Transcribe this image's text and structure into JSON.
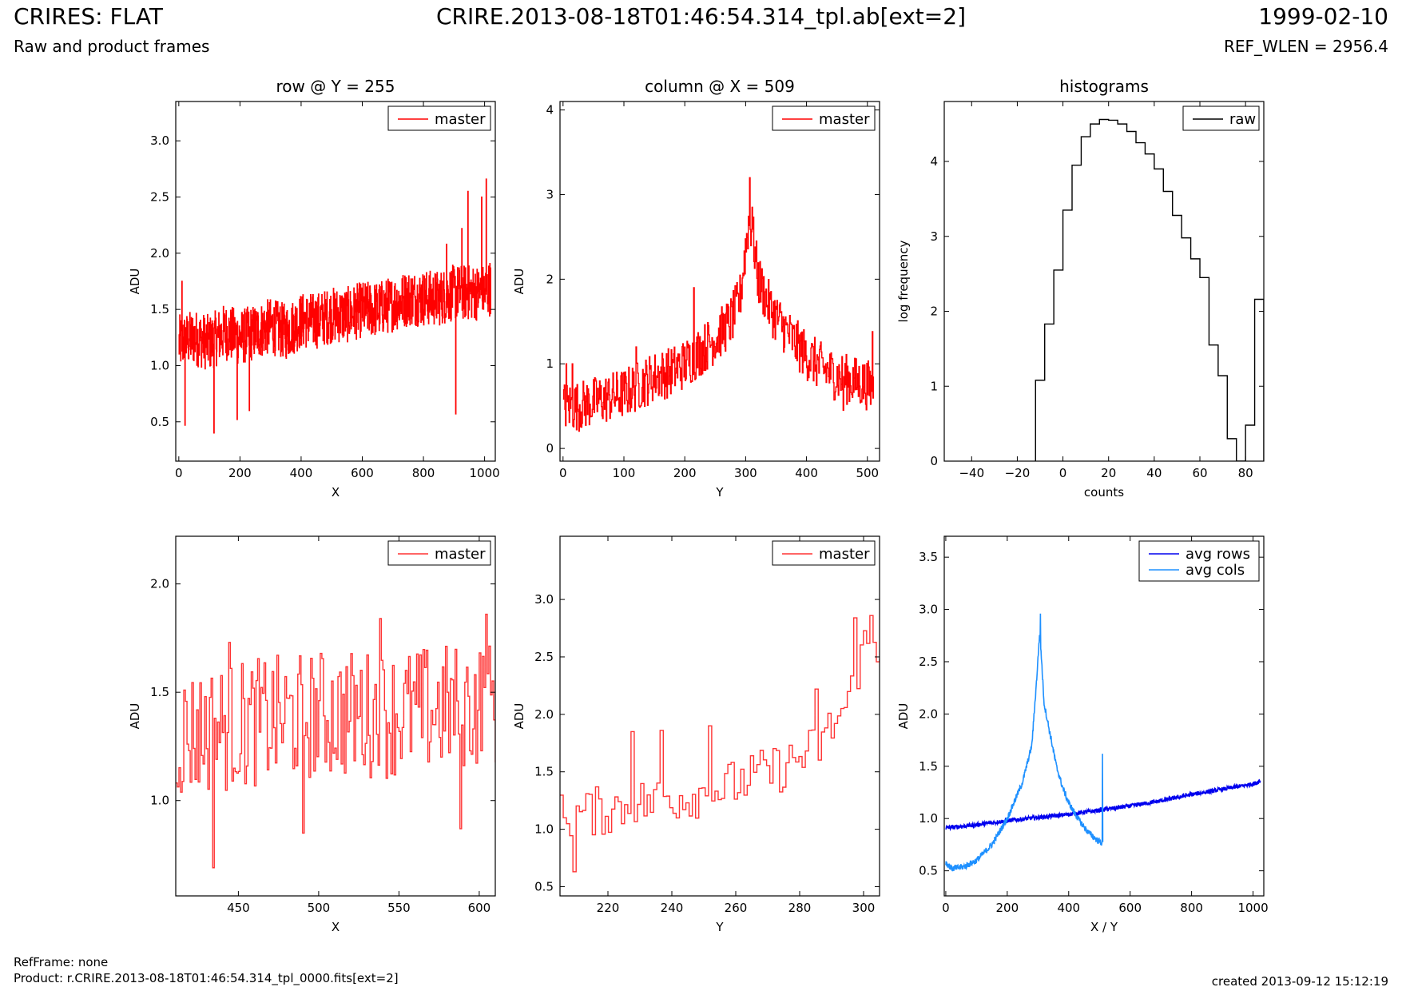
{
  "header": {
    "title": "CRIRES: FLAT",
    "subtitle": "Raw and product frames",
    "file": "CRIRE.2013-08-18T01:46:54.314_tpl.ab[ext=2]",
    "date": "1999-02-10",
    "ref_wlen": "REF_WLEN = 2956.4"
  },
  "footer": {
    "refframe": "RefFrame: none",
    "product": "Product: r.CRIRE.2013-08-18T01:46:54.314_tpl_0000.fits[ext=2]",
    "created": "created 2013-09-12 15:12:19"
  },
  "colors": {
    "master": "#ff0000",
    "zoom": "#ff3333",
    "raw": "#000000",
    "avg_rows": "#0000ee",
    "avg_cols": "#1e90ff"
  },
  "chart_data": [
    {
      "id": "row",
      "type": "line",
      "title": "row @ Y = 255",
      "xlabel": "X",
      "ylabel": "ADU",
      "xlim": [
        -10,
        1035
      ],
      "ylim": [
        0.15,
        3.35
      ],
      "xticks": [
        0,
        200,
        400,
        600,
        800,
        1000
      ],
      "yticks": [
        0.5,
        1.0,
        1.5,
        2.0,
        2.5,
        3.0
      ],
      "ytick_format": 1,
      "legend": "top-right",
      "series": [
        {
          "name": "master",
          "color": "#ff0000",
          "style": "step",
          "x": [
            0,
            50,
            100,
            150,
            200,
            250,
            300,
            350,
            400,
            450,
            500,
            550,
            600,
            650,
            700,
            750,
            800,
            850,
            900,
            950,
            1000,
            1020
          ],
          "y": [
            1.2,
            1.25,
            1.2,
            1.3,
            1.25,
            1.3,
            1.35,
            1.3,
            1.4,
            1.4,
            1.45,
            1.45,
            1.5,
            1.5,
            1.55,
            1.6,
            1.6,
            1.6,
            1.65,
            1.65,
            1.65,
            1.7
          ],
          "noise": 0.25,
          "samples": 1024,
          "spikes": [
            [
              10,
              1.75
            ],
            [
              20,
              0.47
            ],
            [
              115,
              0.4
            ],
            [
              190,
              0.52
            ],
            [
              230,
              0.6
            ],
            [
              905,
              0.57
            ],
            [
              945,
              2.55
            ],
            [
              990,
              2.5
            ],
            [
              1005,
              2.66
            ],
            [
              875,
              2.08
            ],
            [
              925,
              2.22
            ]
          ]
        }
      ]
    },
    {
      "id": "column",
      "type": "line",
      "title": "column @ X = 509",
      "xlabel": "Y",
      "ylabel": "ADU",
      "xlim": [
        -5,
        520
      ],
      "ylim": [
        -0.15,
        4.1
      ],
      "xticks": [
        0,
        100,
        200,
        300,
        400,
        500
      ],
      "yticks": [
        0,
        1,
        2,
        3,
        4
      ],
      "ytick_format": 0,
      "legend": "top-right",
      "series": [
        {
          "name": "master",
          "color": "#ff0000",
          "style": "step",
          "x": [
            0,
            25,
            50,
            75,
            100,
            125,
            150,
            175,
            200,
            225,
            250,
            275,
            290,
            300,
            305,
            310,
            320,
            340,
            360,
            380,
            400,
            425,
            450,
            475,
            500,
            510
          ],
          "y": [
            0.5,
            0.5,
            0.55,
            0.6,
            0.65,
            0.75,
            0.85,
            0.9,
            1.0,
            1.15,
            1.3,
            1.5,
            1.75,
            2.4,
            2.7,
            2.6,
            2.0,
            1.65,
            1.45,
            1.25,
            1.1,
            0.95,
            0.85,
            0.8,
            0.75,
            0.7
          ],
          "noise": 0.3,
          "samples": 512,
          "spikes": [
            [
              306,
              3.2
            ],
            [
              310,
              2.85
            ],
            [
              5,
              1.0
            ],
            [
              15,
              1.0
            ],
            [
              120,
              1.2
            ],
            [
              460,
              0.45
            ],
            [
              508,
              0.33
            ],
            [
              508,
              1.38
            ],
            [
              215,
              1.9
            ]
          ]
        }
      ]
    },
    {
      "id": "hist",
      "type": "line",
      "title": "histograms",
      "xlabel": "counts",
      "ylabel": "log frequency",
      "xlim": [
        -52,
        88
      ],
      "ylim": [
        0,
        4.8
      ],
      "xticks": [
        -40,
        -20,
        0,
        20,
        40,
        60,
        80
      ],
      "yticks": [
        0,
        1,
        2,
        3,
        4
      ],
      "ytick_format": 0,
      "legend": "top-right",
      "series": [
        {
          "name": "raw",
          "color": "#000000",
          "style": "hist",
          "edges": [
            -12,
            -8,
            -4,
            0,
            4,
            8,
            12,
            16,
            20,
            24,
            28,
            32,
            36,
            40,
            44,
            48,
            52,
            56,
            60,
            64,
            68,
            72,
            76,
            80,
            84,
            88
          ],
          "values": [
            1.08,
            1.83,
            2.55,
            3.35,
            3.95,
            4.33,
            4.5,
            4.56,
            4.55,
            4.5,
            4.4,
            4.25,
            4.1,
            3.9,
            3.6,
            3.28,
            2.98,
            2.7,
            2.45,
            1.55,
            1.14,
            0.3,
            0,
            0.48,
            2.16
          ]
        }
      ]
    },
    {
      "id": "row-zoom",
      "type": "line",
      "title": "",
      "xlabel": "X",
      "ylabel": "ADU",
      "xlim": [
        411,
        610
      ],
      "ylim": [
        0.56,
        2.22
      ],
      "xticks": [
        450,
        500,
        550,
        600
      ],
      "yticks": [
        1.0,
        1.5,
        2.0
      ],
      "ytick_format": 1,
      "legend": "top-right",
      "series": [
        {
          "name": "master",
          "color": "#ff3333",
          "style": "step",
          "x": [
            411,
            450,
            500,
            550,
            600,
            610
          ],
          "y": [
            1.3,
            1.35,
            1.4,
            1.4,
            1.45,
            1.45
          ],
          "noise": 0.3,
          "samples": 200,
          "spikes": [
            [
              434,
              0.69
            ],
            [
              444,
              1.73
            ],
            [
              490,
              0.85
            ],
            [
              538,
              1.84
            ],
            [
              588,
              0.87
            ],
            [
              604,
              1.86
            ]
          ]
        }
      ]
    },
    {
      "id": "column-zoom",
      "type": "line",
      "title": "",
      "xlabel": "Y",
      "ylabel": "ADU",
      "xlim": [
        205,
        305
      ],
      "ylim": [
        0.42,
        3.55
      ],
      "xticks": [
        220,
        240,
        260,
        280,
        300
      ],
      "yticks": [
        0.5,
        1.0,
        1.5,
        2.0,
        2.5,
        3.0
      ],
      "ytick_format": 1,
      "legend": "top-right",
      "series": [
        {
          "name": "master",
          "color": "#ff3333",
          "style": "step",
          "x": [
            205,
            215,
            225,
            235,
            245,
            255,
            265,
            275,
            285,
            290,
            295,
            300,
            305
          ],
          "y": [
            1.1,
            1.15,
            1.2,
            1.25,
            1.3,
            1.35,
            1.45,
            1.55,
            1.7,
            1.9,
            2.1,
            2.6,
            2.6
          ],
          "noise": 0.22,
          "samples": 100,
          "spikes": [
            [
              209,
              0.63
            ],
            [
              227,
              1.85
            ],
            [
              236,
              1.86
            ],
            [
              251,
              1.9
            ],
            [
              285,
              2.22
            ],
            [
              297,
              2.84
            ],
            [
              302,
              2.86
            ]
          ]
        }
      ]
    },
    {
      "id": "avg",
      "type": "line",
      "title": "",
      "xlabel": "X / Y",
      "ylabel": "ADU",
      "xlim": [
        -5,
        1035
      ],
      "ylim": [
        0.26,
        3.7
      ],
      "xticks": [
        0,
        200,
        400,
        600,
        800,
        1000
      ],
      "yticks": [
        0.5,
        1.0,
        1.5,
        2.0,
        2.5,
        3.0,
        3.5
      ],
      "ytick_format": 1,
      "legend": "top-right",
      "series": [
        {
          "name": "avg rows",
          "color": "#0000ee",
          "style": "line",
          "x": [
            0,
            100,
            200,
            300,
            400,
            500,
            600,
            700,
            800,
            900,
            1000,
            1024
          ],
          "y": [
            0.91,
            0.94,
            0.98,
            1.01,
            1.04,
            1.08,
            1.12,
            1.17,
            1.23,
            1.28,
            1.33,
            1.36
          ],
          "noise": 0.02,
          "samples": 1024,
          "spikes": []
        },
        {
          "name": "avg cols",
          "color": "#1e90ff",
          "style": "line",
          "x": [
            0,
            20,
            60,
            100,
            150,
            200,
            250,
            280,
            295,
            305,
            310,
            320,
            340,
            360,
            380,
            400,
            430,
            460,
            490,
            505,
            511
          ],
          "y": [
            0.58,
            0.52,
            0.54,
            0.6,
            0.75,
            1.0,
            1.35,
            1.7,
            2.3,
            2.75,
            2.6,
            2.1,
            1.8,
            1.5,
            1.3,
            1.15,
            1.0,
            0.88,
            0.8,
            0.77,
            0.77
          ],
          "noise": 0.03,
          "samples": 512,
          "spikes": [
            [
              308,
              2.96
            ],
            [
              510,
              1.62
            ]
          ]
        }
      ]
    }
  ]
}
